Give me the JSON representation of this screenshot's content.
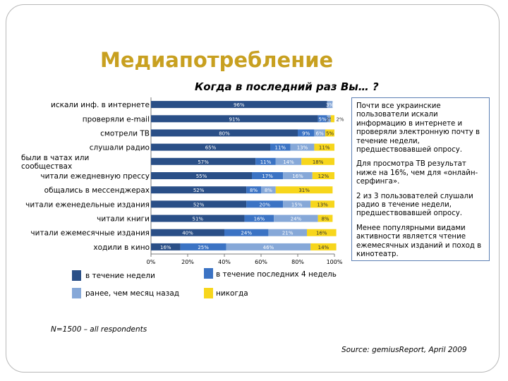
{
  "slide": {
    "title": "Медиапотребление",
    "question": "Когда в последний раз Вы… ?"
  },
  "chart_data": {
    "type": "bar",
    "orientation": "horizontal",
    "stacked": true,
    "categories": [
      "искали инф. в интернете",
      "проверяли e-mail",
      "смотрели ТВ",
      "слушали радио",
      "были в чатах или сообществах",
      "читали ежедневную прессу",
      "общались в мессенджерах",
      "читали еженедельные издания",
      "читали книги",
      "читали ежемесячные издания",
      "ходили в кино"
    ],
    "series": [
      {
        "name": "в течение недели",
        "color": "#2a4f87",
        "values": [
          96,
          91,
          80,
          65,
          57,
          55,
          52,
          52,
          51,
          40,
          16
        ]
      },
      {
        "name": "в течение последних 4 недель",
        "color": "#3b73c4",
        "values": [
          0,
          5,
          9,
          11,
          11,
          17,
          8,
          20,
          16,
          24,
          25
        ]
      },
      {
        "name": "ранее, чем месяц назад",
        "color": "#86a8d8",
        "values": [
          3,
          2,
          6,
          13,
          14,
          16,
          8,
          15,
          24,
          21,
          46
        ]
      },
      {
        "name": "никогда",
        "color": "#f7d61c",
        "values": [
          0,
          2,
          5,
          11,
          18,
          12,
          31,
          13,
          8,
          16,
          14
        ]
      }
    ],
    "data_labels": [
      [
        "96%",
        "",
        "3%",
        ""
      ],
      [
        "91%",
        "5%",
        "2%",
        "2%"
      ],
      [
        "80%",
        "9%",
        "6%",
        "5%"
      ],
      [
        "65%",
        "11%",
        "13%",
        "11%"
      ],
      [
        "57%",
        "11%",
        "14%",
        "18%"
      ],
      [
        "55%",
        "17%",
        "16%",
        "12%"
      ],
      [
        "52%",
        "8%",
        "8%",
        "31%"
      ],
      [
        "52%",
        "20%",
        "15%",
        "13%"
      ],
      [
        "51%",
        "16%",
        "24%",
        "8%"
      ],
      [
        "40%",
        "24%",
        "21%",
        "16%"
      ],
      [
        "16%",
        "25%",
        "46%",
        "14%"
      ]
    ],
    "xticks": [
      "0%",
      "20%",
      "40%",
      "60%",
      "80%",
      "100%"
    ],
    "xlim": [
      0,
      100
    ],
    "legend_position": "bottom"
  },
  "notes": [
    "Почти все украинские пользователи искали информацию в интернете и проверяли электронную почту в течение недели, предшествовавшей опросу.",
    "Для просмотра ТВ результат ниже на 16%, чем для «онлайн-серфинга».",
    "2 из 3 пользователей слушали радио в течение недели, предшествовавшей опросу.",
    "Менее популярными видами активности является чтение ежемесячных изданий и поход в кинотеатр."
  ],
  "footnote": "N=1500 – all respondents",
  "source": "Source: gemiusReport, April 2009"
}
